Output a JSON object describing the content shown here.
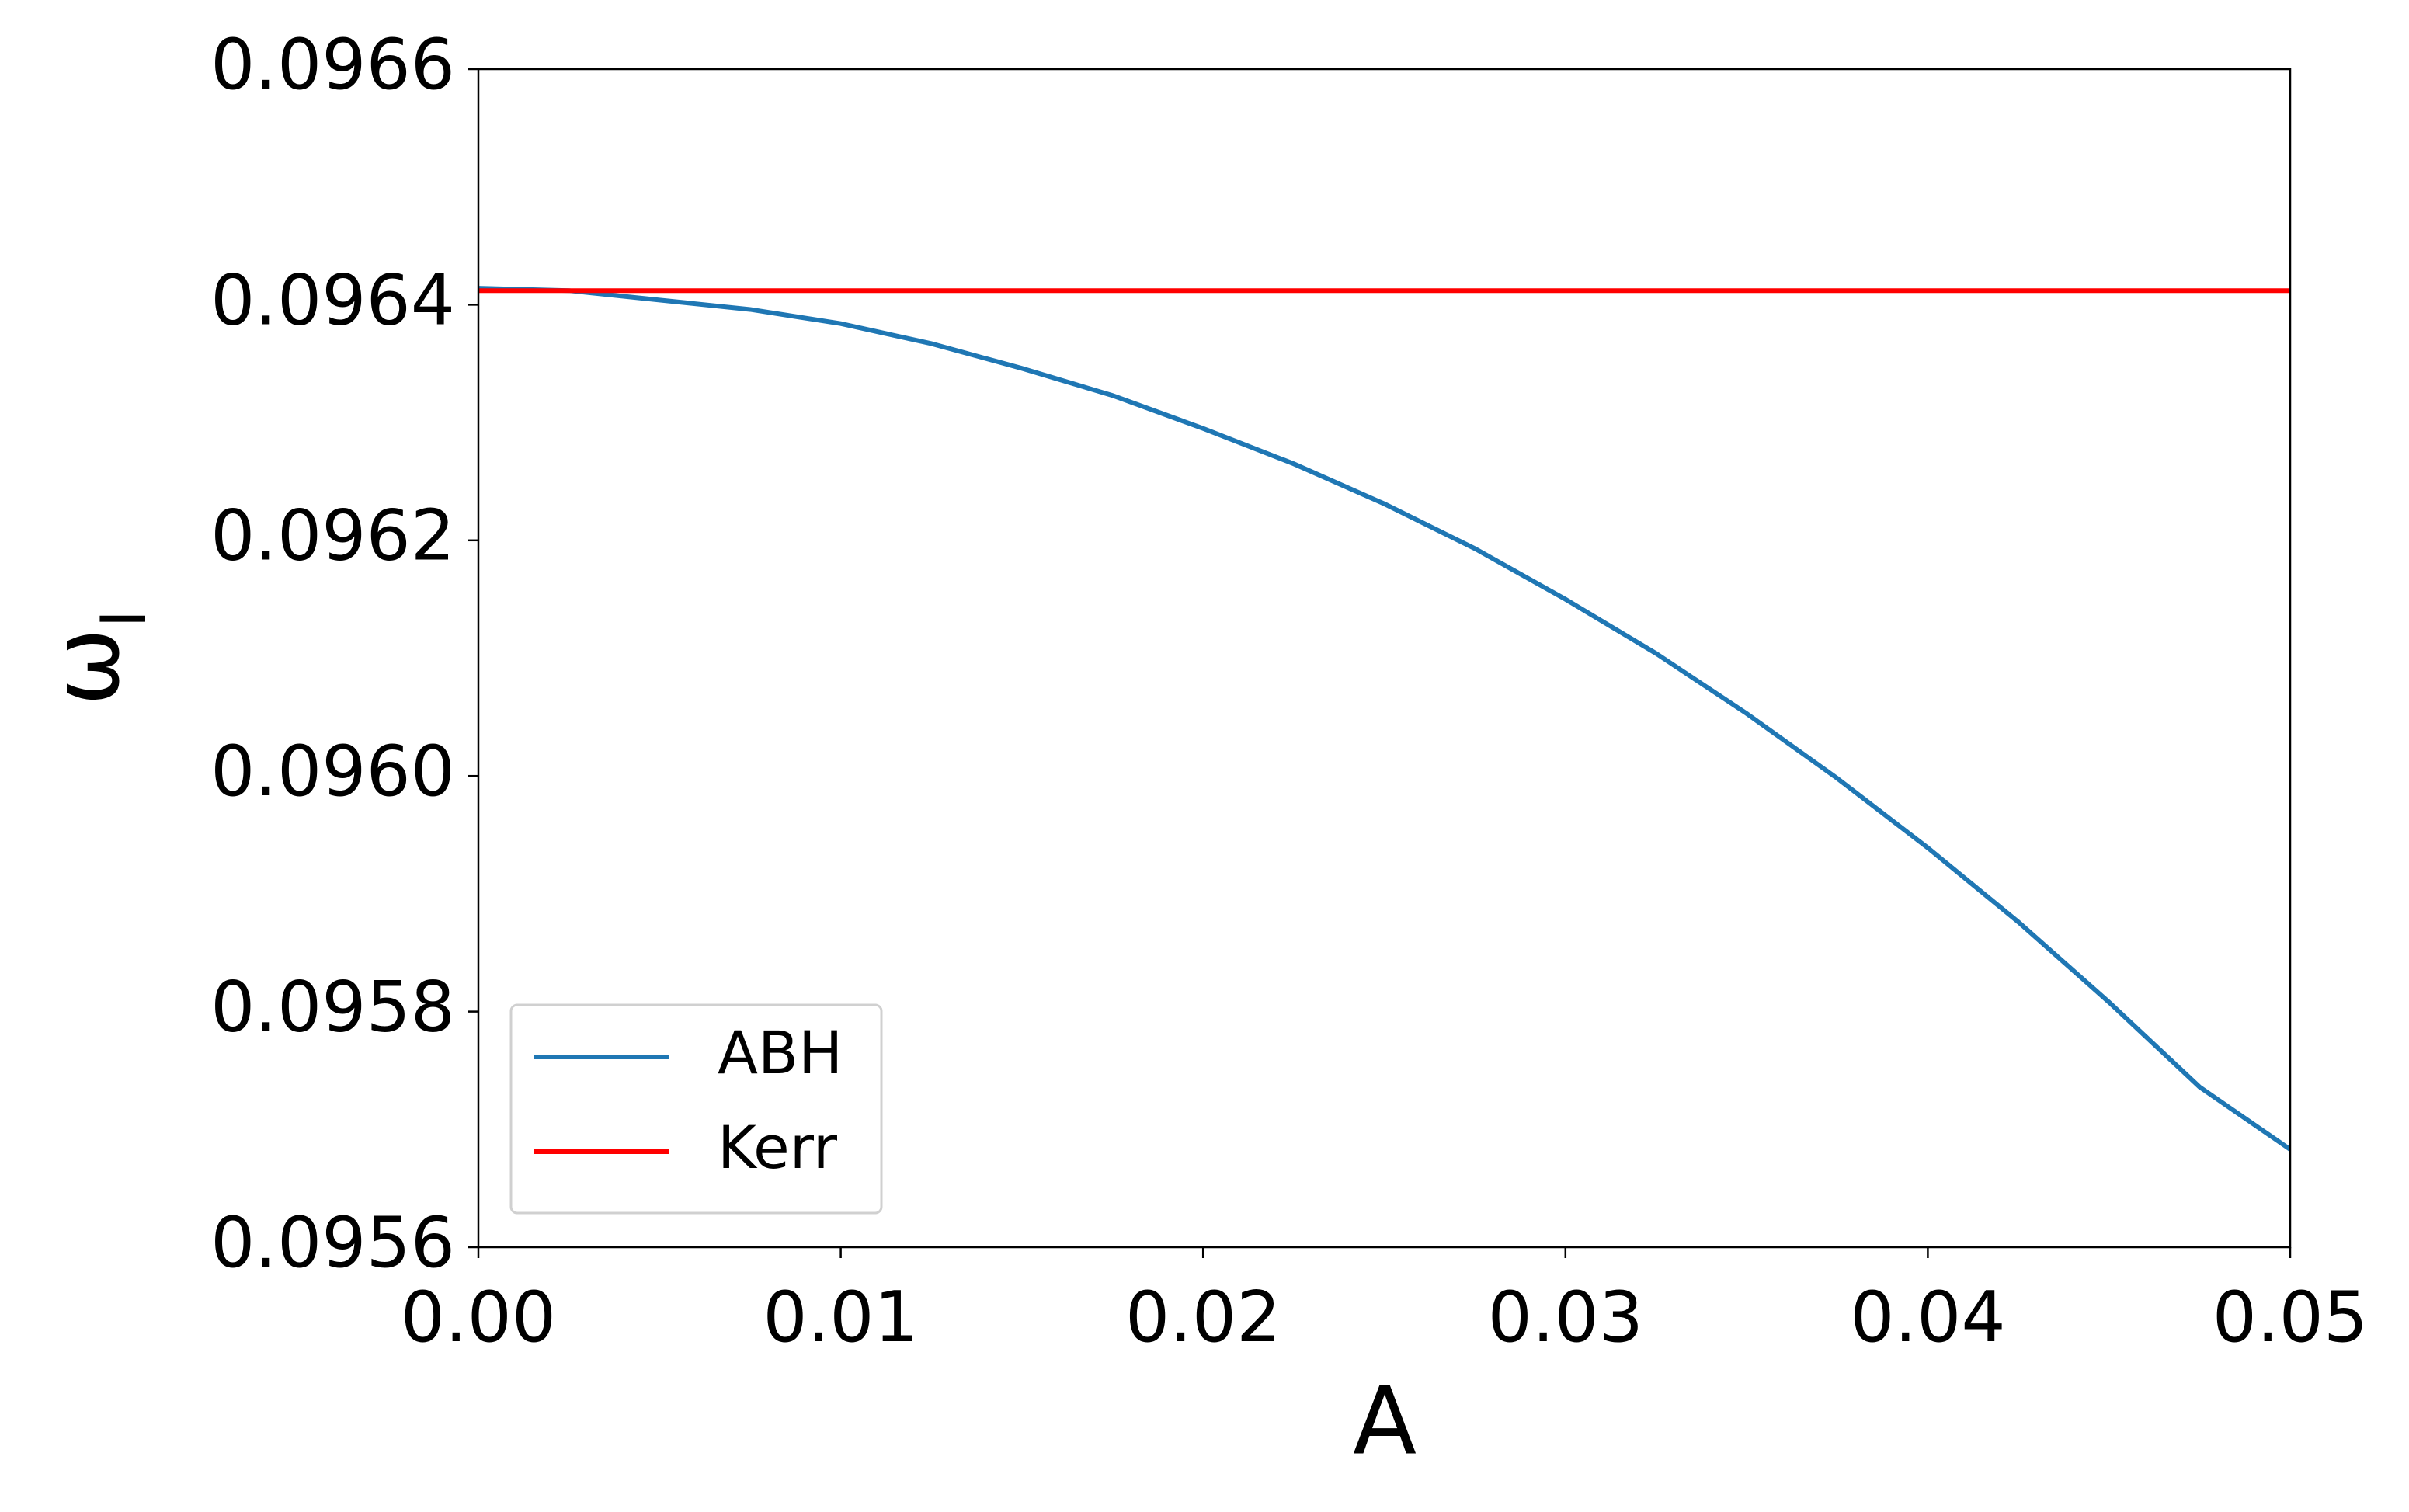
{
  "chart_data": {
    "type": "line",
    "xlabel": "A",
    "ylabel": "ωI",
    "x": [
      0,
      0.0025,
      0.005,
      0.0075,
      0.01,
      0.0125,
      0.015,
      0.0175,
      0.02,
      0.0225,
      0.025,
      0.0275,
      0.03,
      0.0325,
      0.035,
      0.0375,
      0.04,
      0.0425,
      0.045,
      0.0475,
      0.05
    ],
    "series": [
      {
        "name": "ABH",
        "color": "#1f77b4",
        "values": [
          0.096414,
          0.096412,
          0.096404,
          0.096396,
          0.096384,
          0.096367,
          0.096346,
          0.096323,
          0.096295,
          0.096265,
          0.096231,
          0.096193,
          0.09615,
          0.096104,
          0.096053,
          0.095998,
          0.095939,
          0.095876,
          0.095808,
          0.095736,
          0.095683
        ]
      },
      {
        "name": "Kerr",
        "color": "#ff0000",
        "values": [
          0.096412,
          0.096412,
          0.096412,
          0.096412,
          0.096412,
          0.096412,
          0.096412,
          0.096412,
          0.096412,
          0.096412,
          0.096412,
          0.096412,
          0.096412,
          0.096412,
          0.096412,
          0.096412,
          0.096412,
          0.096412,
          0.096412,
          0.096412,
          0.096412
        ]
      }
    ],
    "xlim": [
      0,
      0.05
    ],
    "xticks": [
      {
        "value": 0,
        "label": "0.00"
      },
      0.01,
      0.02,
      0.03,
      0.04,
      0.05
    ],
    "ylim": [
      0.0956,
      0.0966
    ],
    "yticks": [
      0.0956,
      0.0958,
      {
        "value": 0.096,
        "label": "0.0960"
      },
      0.0962,
      0.0964,
      0.0966
    ],
    "grid": false,
    "legend": "lower left"
  }
}
